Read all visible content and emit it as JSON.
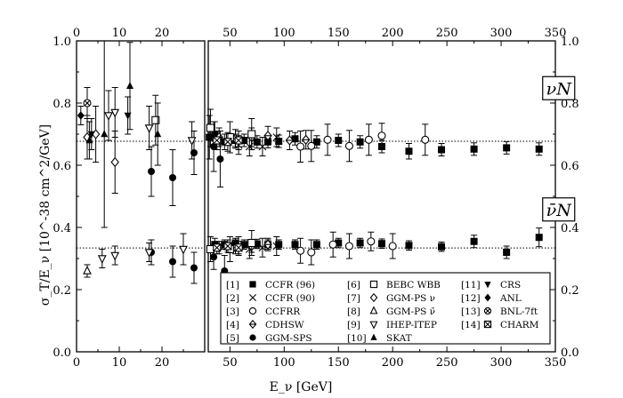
{
  "chart_data": {
    "type": "scatter",
    "title": "",
    "xlabel": "E_ν  [GeV]",
    "ylabel": "σ_T/E_ν  [10^-38 cm^2/GeV]",
    "panels": [
      {
        "name": "low",
        "xlim": [
          0,
          30
        ],
        "xticks": [
          0,
          10,
          20
        ],
        "xtick_labels": [
          "0",
          "10",
          "20"
        ],
        "top_xticks": [
          0,
          10,
          20
        ],
        "top_xtick_labels": [
          "0",
          "10",
          "20"
        ]
      },
      {
        "name": "high",
        "xlim": [
          30,
          350
        ],
        "xticks": [
          50,
          100,
          150,
          200,
          250,
          300,
          350
        ],
        "xtick_labels": [
          "50",
          "100",
          "150",
          "200",
          "250",
          "300",
          "350"
        ],
        "top_xticks": [
          50,
          100,
          150,
          200,
          250,
          300,
          350
        ],
        "top_xtick_labels": [
          "50",
          "100",
          "150",
          "200",
          "250",
          "300",
          "350"
        ]
      }
    ],
    "ylim": [
      0.0,
      1.0
    ],
    "yticks": [
      0.0,
      0.2,
      0.4,
      0.6,
      0.8,
      1.0
    ],
    "ytick_labels": [
      "0.0",
      "0.2",
      "0.4",
      "0.6",
      "0.8",
      "1.0"
    ],
    "annotations": [
      {
        "text": "νN",
        "x": 230,
        "y": 0.845
      },
      {
        "text": "ν̄N",
        "x": 230,
        "y": 0.455
      }
    ],
    "reference_lines": [
      {
        "name": "nu-average",
        "y": 0.677
      },
      {
        "name": "nubar-average",
        "y": 0.334
      }
    ],
    "series": [
      {
        "id": "1",
        "name": "CCFR (96)",
        "marker": "filled-square",
        "points": [
          [
            31,
            0.69,
            0.07
          ],
          [
            36,
            0.7,
            0.04
          ],
          [
            45,
            0.675,
            0.025
          ],
          [
            55,
            0.68,
            0.02
          ],
          [
            63,
            0.68,
            0.02
          ],
          [
            75,
            0.675,
            0.02
          ],
          [
            85,
            0.676,
            0.02
          ],
          [
            95,
            0.677,
            0.02
          ],
          [
            110,
            0.685,
            0.02
          ],
          [
            130,
            0.675,
            0.02
          ],
          [
            150,
            0.68,
            0.02
          ],
          [
            170,
            0.675,
            0.02
          ],
          [
            190,
            0.66,
            0.02
          ],
          [
            215,
            0.645,
            0.025
          ],
          [
            245,
            0.65,
            0.02
          ],
          [
            275,
            0.652,
            0.02
          ],
          [
            305,
            0.656,
            0.02
          ],
          [
            335,
            0.652,
            0.02
          ],
          [
            36,
            0.345,
            0.02
          ],
          [
            45,
            0.345,
            0.015
          ],
          [
            55,
            0.35,
            0.015
          ],
          [
            63,
            0.345,
            0.015
          ],
          [
            75,
            0.347,
            0.015
          ],
          [
            85,
            0.345,
            0.015
          ],
          [
            95,
            0.345,
            0.015
          ],
          [
            110,
            0.345,
            0.015
          ],
          [
            130,
            0.345,
            0.015
          ],
          [
            150,
            0.35,
            0.015
          ],
          [
            170,
            0.35,
            0.015
          ],
          [
            190,
            0.348,
            0.015
          ],
          [
            215,
            0.342,
            0.015
          ],
          [
            245,
            0.338,
            0.015
          ],
          [
            275,
            0.355,
            0.02
          ],
          [
            305,
            0.32,
            0.02
          ],
          [
            335,
            0.368,
            0.03
          ]
        ]
      },
      {
        "id": "2",
        "name": "CCFR (90)",
        "marker": "cross",
        "points": [
          [
            58,
            0.665,
            0.03
          ],
          [
            68,
            0.66,
            0.03
          ],
          [
            80,
            0.66,
            0.03
          ],
          [
            93,
            0.69,
            0.03
          ],
          [
            58,
            0.34,
            0.03
          ],
          [
            68,
            0.33,
            0.03
          ],
          [
            80,
            0.335,
            0.03
          ],
          [
            93,
            0.34,
            0.03
          ]
        ]
      },
      {
        "id": "3",
        "name": "CCFRR",
        "marker": "open-circle",
        "points": [
          [
            115,
            0.66,
            0.05
          ],
          [
            125,
            0.662,
            0.05
          ],
          [
            140,
            0.682,
            0.05
          ],
          [
            160,
            0.662,
            0.05
          ],
          [
            178,
            0.682,
            0.05
          ],
          [
            190,
            0.695,
            0.04
          ],
          [
            230,
            0.682,
            0.05
          ],
          [
            115,
            0.325,
            0.04
          ],
          [
            125,
            0.32,
            0.04
          ],
          [
            145,
            0.345,
            0.04
          ],
          [
            160,
            0.34,
            0.04
          ],
          [
            180,
            0.355,
            0.03
          ],
          [
            200,
            0.34,
            0.04
          ]
        ]
      },
      {
        "id": "4",
        "name": "CDHSW",
        "marker": "diamond-half",
        "points": [
          [
            40,
            0.69,
            0.03
          ],
          [
            55,
            0.685,
            0.03
          ],
          [
            70,
            0.69,
            0.03
          ],
          [
            85,
            0.695,
            0.03
          ],
          [
            105,
            0.68,
            0.03
          ],
          [
            120,
            0.682,
            0.03
          ],
          [
            40,
            0.335,
            0.02
          ],
          [
            55,
            0.335,
            0.02
          ],
          [
            70,
            0.34,
            0.02
          ],
          [
            85,
            0.345,
            0.02
          ]
        ]
      },
      {
        "id": "5",
        "name": "GGM-SPS",
        "marker": "filled-circle",
        "points": [
          [
            17.5,
            0.58,
            0.08
          ],
          [
            22.5,
            0.56,
            0.09
          ],
          [
            27.5,
            0.64,
            0.07
          ],
          [
            35,
            0.66,
            0.08
          ],
          [
            41,
            0.62,
            0.09
          ],
          [
            17.5,
            0.32,
            0.04
          ],
          [
            22.5,
            0.29,
            0.05
          ],
          [
            27.5,
            0.27,
            0.05
          ],
          [
            35,
            0.305,
            0.04
          ],
          [
            45,
            0.26,
            0.05
          ]
        ]
      },
      {
        "id": "6",
        "name": "BEBC WBB",
        "marker": "open-square",
        "points": [
          [
            18.5,
            0.745,
            0.08
          ],
          [
            32,
            0.72,
            0.06
          ],
          [
            50,
            0.69,
            0.05
          ],
          [
            70,
            0.7,
            0.05
          ],
          [
            32,
            0.33,
            0.04
          ],
          [
            50,
            0.33,
            0.04
          ],
          [
            70,
            0.35,
            0.04
          ]
        ]
      },
      {
        "id": "7",
        "name": "GGM-PS ν",
        "marker": "diamond",
        "points": [
          [
            2.5,
            0.69,
            0.07
          ],
          [
            4.5,
            0.7,
            0.09
          ],
          [
            9.0,
            0.61,
            0.1
          ]
        ]
      },
      {
        "id": "8",
        "name": "GGM-PS ν̄",
        "marker": "triangle-up",
        "points": [
          [
            2.5,
            0.26,
            0.02
          ]
        ]
      },
      {
        "id": "9",
        "name": "IHEP-ITEP",
        "marker": "triangle-down",
        "points": [
          [
            7.5,
            0.76,
            0.08
          ],
          [
            9.0,
            0.77,
            0.08
          ],
          [
            17.0,
            0.72,
            0.07
          ],
          [
            27.0,
            0.68,
            0.06
          ],
          [
            6.0,
            0.3,
            0.03
          ],
          [
            9.0,
            0.31,
            0.03
          ],
          [
            17.0,
            0.32,
            0.03
          ],
          [
            25.0,
            0.33,
            0.05
          ]
        ]
      },
      {
        "id": "10",
        "name": "SKAT",
        "marker": "filled-triangle-up",
        "points": [
          [
            3.0,
            0.68,
            0.06
          ],
          [
            6.5,
            0.7,
            0.3
          ],
          [
            12.5,
            0.855,
            0.14
          ],
          [
            19.0,
            0.7,
            0.1
          ]
        ]
      },
      {
        "id": "11",
        "name": "CRS",
        "marker": "filled-triangle-down",
        "points": [
          [
            3.5,
            0.7,
            0.05
          ],
          [
            12.0,
            0.76,
            0.06
          ]
        ]
      },
      {
        "id": "12",
        "name": "ANL",
        "marker": "filled-diamond",
        "points": [
          [
            1.0,
            0.76,
            0.03
          ]
        ]
      },
      {
        "id": "13",
        "name": "BNL-7ft",
        "marker": "circle-cross",
        "points": [
          [
            2.5,
            0.8,
            0.05
          ]
        ]
      },
      {
        "id": "14",
        "name": "CHARM",
        "marker": "square-cross",
        "points": [
          [
            38,
            0.68,
            0.03
          ],
          [
            48,
            0.675,
            0.03
          ],
          [
            58,
            0.68,
            0.03
          ],
          [
            38,
            0.335,
            0.02
          ],
          [
            48,
            0.34,
            0.02
          ],
          [
            58,
            0.335,
            0.02
          ]
        ]
      }
    ],
    "legend": {
      "placement": "bottom-right",
      "numbering": [
        "[1]",
        "[2]",
        "[3]",
        "[4]",
        "[5]",
        "[6]",
        "[7]",
        "[8]",
        "[9]",
        "[10]",
        "[11]",
        "[12]",
        "[13]",
        "[14]"
      ]
    }
  }
}
